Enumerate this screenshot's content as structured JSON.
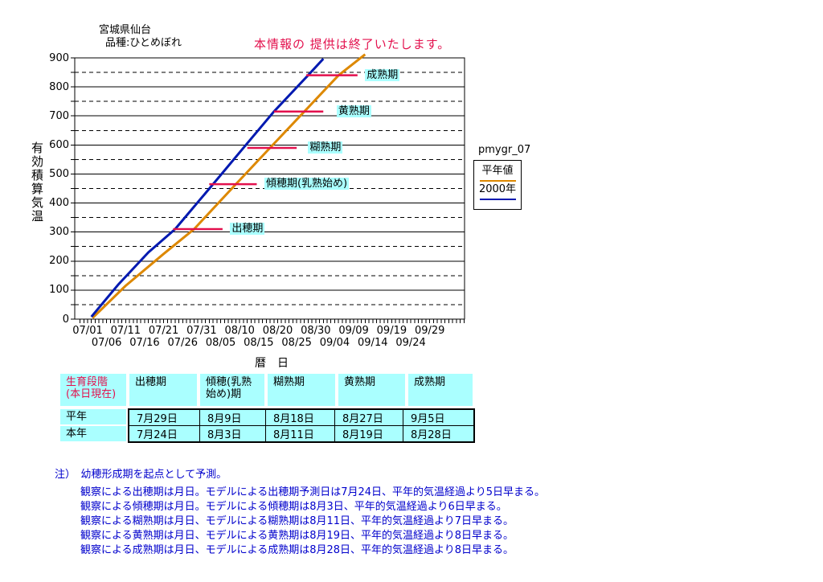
{
  "header": {
    "location": "宮城県仙台",
    "variety": "品種:ひとめぼれ",
    "notice": "本情報の 提供は終了いたします。"
  },
  "chart_data": {
    "type": "line",
    "title": "pmygr_07",
    "y_axis": {
      "label": "有効積算気温",
      "min": 0,
      "max": 900,
      "major_step": 100,
      "minor_step": 50,
      "grid": "solid lines at multiples of 100, dashed lines at 50-offsets"
    },
    "x_axis": {
      "label": "暦　日",
      "tick_rows": [
        {
          "start_day": 0,
          "step": 10,
          "labels": [
            "07/01",
            "07/11",
            "07/21",
            "07/31",
            "08/10",
            "08/20",
            "08/30",
            "09/09",
            "09/19",
            "09/29"
          ]
        },
        {
          "start_day": 5,
          "step": 10,
          "labels": [
            "07/06",
            "07/16",
            "07/26",
            "08/05",
            "08/15",
            "08/25",
            "09/04",
            "09/14",
            "09/24"
          ]
        }
      ]
    },
    "series": [
      {
        "name": "平年値",
        "color": "#dd8800",
        "points": [
          [
            1.3,
            4
          ],
          [
            10,
            115
          ],
          [
            20,
            225
          ],
          [
            28,
            310
          ],
          [
            39,
            465
          ],
          [
            48,
            590
          ],
          [
            57,
            715
          ],
          [
            66,
            840
          ],
          [
            73,
            912
          ]
        ]
      },
      {
        "name": "2000年",
        "color": "#0019b0",
        "points": [
          [
            1,
            8
          ],
          [
            8,
            118
          ],
          [
            16,
            230
          ],
          [
            23,
            310
          ],
          [
            33,
            465
          ],
          [
            41,
            590
          ],
          [
            49,
            715
          ],
          [
            58,
            840
          ],
          [
            62,
            897
          ]
        ]
      }
    ],
    "stage_color": "#e3104d",
    "stages": [
      {
        "label": "出穂期",
        "value": 310,
        "day_start": 22.5,
        "day_end": 35.5,
        "label_day": 37.5
      },
      {
        "label": "傾穂期(乳熟始め)",
        "value": 465,
        "day_start": 32,
        "day_end": 44.5,
        "label_day": 46.5
      },
      {
        "label": "糊熟期",
        "value": 590,
        "day_start": 42,
        "day_end": 55,
        "label_day": 58
      },
      {
        "label": "黄熟期",
        "value": 715,
        "day_start": 49,
        "day_end": 62,
        "label_day": 65.5
      },
      {
        "label": "成熟期",
        "value": 840,
        "day_start": 57.5,
        "day_end": 71,
        "label_day": 73
      }
    ],
    "legend": {
      "title": "pmygr_07",
      "items": [
        {
          "label": "平年値",
          "color": "#dd8800"
        },
        {
          "label": "2000年",
          "color": "#0019b0"
        }
      ]
    }
  },
  "table": {
    "headers": [
      "生育段階\n(本日現在)",
      "出穂期",
      "傾穂(乳熟\n始め)期",
      "糊熟期",
      "黄熟期",
      "成熟期"
    ],
    "rows": [
      {
        "label": "平年",
        "values": [
          "7月29日",
          "8月9日",
          "8月18日",
          "8月27日",
          "9月5日"
        ]
      },
      {
        "label": "本年",
        "values": [
          "7月24日",
          "8月3日",
          "8月11日",
          "8月19日",
          "8月28日"
        ]
      }
    ]
  },
  "notes": {
    "intro": "注）　幼穂形成期を起点として予測。",
    "lines": [
      "観察による出穂期は月日。モデルによる出穂期予測日は7月24日、平年的気温経過より5日早まる。",
      "観察による傾穂期は月日。モデルによる傾穂期は8月3日、平年的気温経過より6日早まる。",
      "観察による糊熟期は月日、モデルによる糊熟期は8月11日、平年的気温経過より7日早まる。",
      "観察による黄熟期は月日、モデルによる黄熟期は8月19日、平年的気温経過より8日早まる。",
      "観察による成熟期は月日、モデルによる成熟期は8月28日、平年的気温経過より8日早まる。"
    ]
  }
}
